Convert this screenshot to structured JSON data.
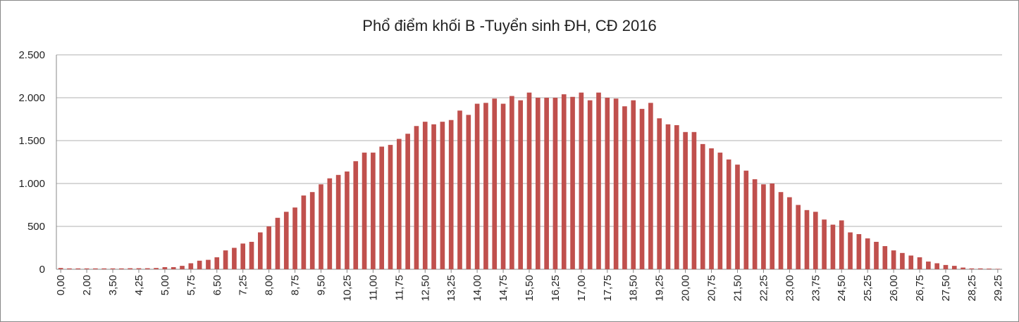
{
  "chart_data": {
    "type": "bar",
    "title": "Phổ điểm khối B -Tuyển sinh ĐH, CĐ 2016",
    "categories": [
      "0,00",
      null,
      null,
      "2,00",
      null,
      null,
      "3,50",
      null,
      null,
      "4,25",
      null,
      null,
      "5,00",
      null,
      null,
      "5,75",
      null,
      null,
      "6,50",
      null,
      null,
      "7,25",
      null,
      null,
      "8,00",
      null,
      null,
      "8,75",
      null,
      null,
      "9,50",
      null,
      null,
      "10,25",
      null,
      null,
      "11,00",
      null,
      null,
      "11,75",
      null,
      null,
      "12,50",
      null,
      null,
      "13,25",
      null,
      null,
      "14,00",
      null,
      null,
      "14,75",
      null,
      null,
      "15,50",
      null,
      null,
      "16,25",
      null,
      null,
      "17,00",
      null,
      null,
      "17,75",
      null,
      null,
      "18,50",
      null,
      null,
      "19,25",
      null,
      null,
      "20,00",
      null,
      null,
      "20,75",
      null,
      null,
      "21,50",
      null,
      null,
      "22,25",
      null,
      null,
      "23,00",
      null,
      null,
      "23,75",
      null,
      null,
      "24,50",
      null,
      null,
      "25,25",
      null,
      null,
      "26,00",
      null,
      null,
      "26,75",
      null,
      null,
      "27,50",
      null,
      null,
      "28,25",
      null,
      null,
      "29,25"
    ],
    "values": [
      15,
      10,
      10,
      10,
      10,
      10,
      10,
      10,
      12,
      12,
      12,
      15,
      25,
      25,
      40,
      70,
      100,
      110,
      140,
      220,
      250,
      300,
      320,
      430,
      500,
      600,
      670,
      720,
      860,
      900,
      990,
      1060,
      1100,
      1140,
      1260,
      1360,
      1360,
      1430,
      1450,
      1520,
      1580,
      1670,
      1720,
      1690,
      1720,
      1740,
      1850,
      1800,
      1930,
      1940,
      1990,
      1930,
      2020,
      1970,
      2060,
      2000,
      2000,
      2000,
      2040,
      2010,
      2060,
      1970,
      2060,
      2000,
      1990,
      1900,
      1970,
      1870,
      1940,
      1760,
      1690,
      1680,
      1600,
      1600,
      1460,
      1410,
      1360,
      1280,
      1220,
      1150,
      1050,
      990,
      1000,
      900,
      840,
      750,
      690,
      670,
      580,
      520,
      570,
      430,
      410,
      360,
      320,
      270,
      220,
      190,
      160,
      140,
      90,
      70,
      50,
      40,
      20,
      10,
      10,
      8,
      5
    ],
    "color": "#c0504d",
    "ylim": [
      0,
      2500
    ],
    "yticks": [
      0,
      500,
      {
        "value": 1000,
        "label": "1.000"
      },
      {
        "value": 1500,
        "label": "1.500"
      },
      {
        "value": 2000,
        "label": "2.000"
      },
      {
        "value": 2500,
        "label": "2.500"
      }
    ],
    "grid": true
  }
}
